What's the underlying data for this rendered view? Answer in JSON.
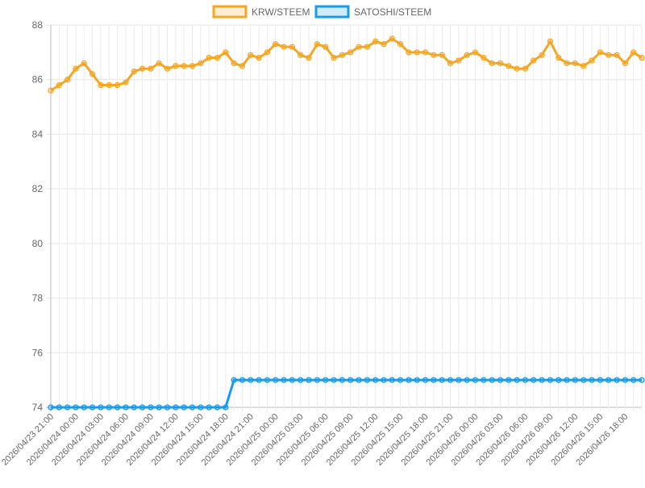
{
  "chart_data": {
    "type": "line",
    "legend_position": "top",
    "grid": true,
    "ylim": [
      74,
      88
    ],
    "y_ticks": [
      "74",
      "76",
      "78",
      "80",
      "82",
      "84",
      "86",
      "88"
    ],
    "x_tick_labels": [
      "2026/04/23 21:00",
      "2026/04/24 00:00",
      "2026/04/24 03:00",
      "2026/04/24 06:00",
      "2026/04/24 09:00",
      "2026/04/24 12:00",
      "2026/04/24 15:00",
      "2026/04/24 18:00",
      "2026/04/24 21:00",
      "2026/04/25 00:00",
      "2026/04/25 03:00",
      "2026/04/25 06:00",
      "2026/04/25 09:00",
      "2026/04/25 12:00",
      "2026/04/25 15:00",
      "2026/04/25 18:00",
      "2026/04/25 21:00",
      "2026/04/26 00:00",
      "2026/04/26 03:00",
      "2026/04/26 06:00",
      "2026/04/26 09:00",
      "2026/04/26 12:00",
      "2026/04/26 15:00",
      "2026/04/26 18:00"
    ],
    "x_start": "2026/04/23 21:00",
    "x_interval_minutes": 60,
    "series": [
      {
        "name": "KRW/STEEM",
        "color": "#f5a623",
        "fill": "rgba(245,166,35,0.2)",
        "values": [
          85.6,
          85.8,
          86.0,
          86.4,
          86.6,
          86.2,
          85.8,
          85.8,
          85.8,
          85.9,
          86.3,
          86.4,
          86.4,
          86.6,
          86.4,
          86.5,
          86.5,
          86.5,
          86.6,
          86.8,
          86.8,
          87.0,
          86.6,
          86.5,
          86.9,
          86.8,
          87.0,
          87.3,
          87.2,
          87.2,
          86.9,
          86.8,
          87.3,
          87.2,
          86.8,
          86.9,
          87.0,
          87.2,
          87.2,
          87.4,
          87.3,
          87.5,
          87.3,
          87.0,
          87.0,
          87.0,
          86.9,
          86.9,
          86.6,
          86.7,
          86.9,
          87.0,
          86.8,
          86.6,
          86.6,
          86.5,
          86.4,
          86.4,
          86.7,
          86.9,
          87.4,
          86.8,
          86.6,
          86.6,
          86.5,
          86.7,
          87.0,
          86.9,
          86.9,
          86.6,
          87.0,
          86.8
        ]
      },
      {
        "name": "SATOSHI/STEEM",
        "color": "#1a9be8",
        "fill": "rgba(26,155,232,0.2)",
        "values": [
          74,
          74,
          74,
          74,
          74,
          74,
          74,
          74,
          74,
          74,
          74,
          74,
          74,
          74,
          74,
          74,
          74,
          74,
          74,
          74,
          74,
          74,
          75,
          75,
          75,
          75,
          75,
          75,
          75,
          75,
          75,
          75,
          75,
          75,
          75,
          75,
          75,
          75,
          75,
          75,
          75,
          75,
          75,
          75,
          75,
          75,
          75,
          75,
          75,
          75,
          75,
          75,
          75,
          75,
          75,
          75,
          75,
          75,
          75,
          75,
          75,
          75,
          75,
          75,
          75,
          75,
          75,
          75,
          75,
          75,
          75,
          75
        ]
      }
    ]
  }
}
